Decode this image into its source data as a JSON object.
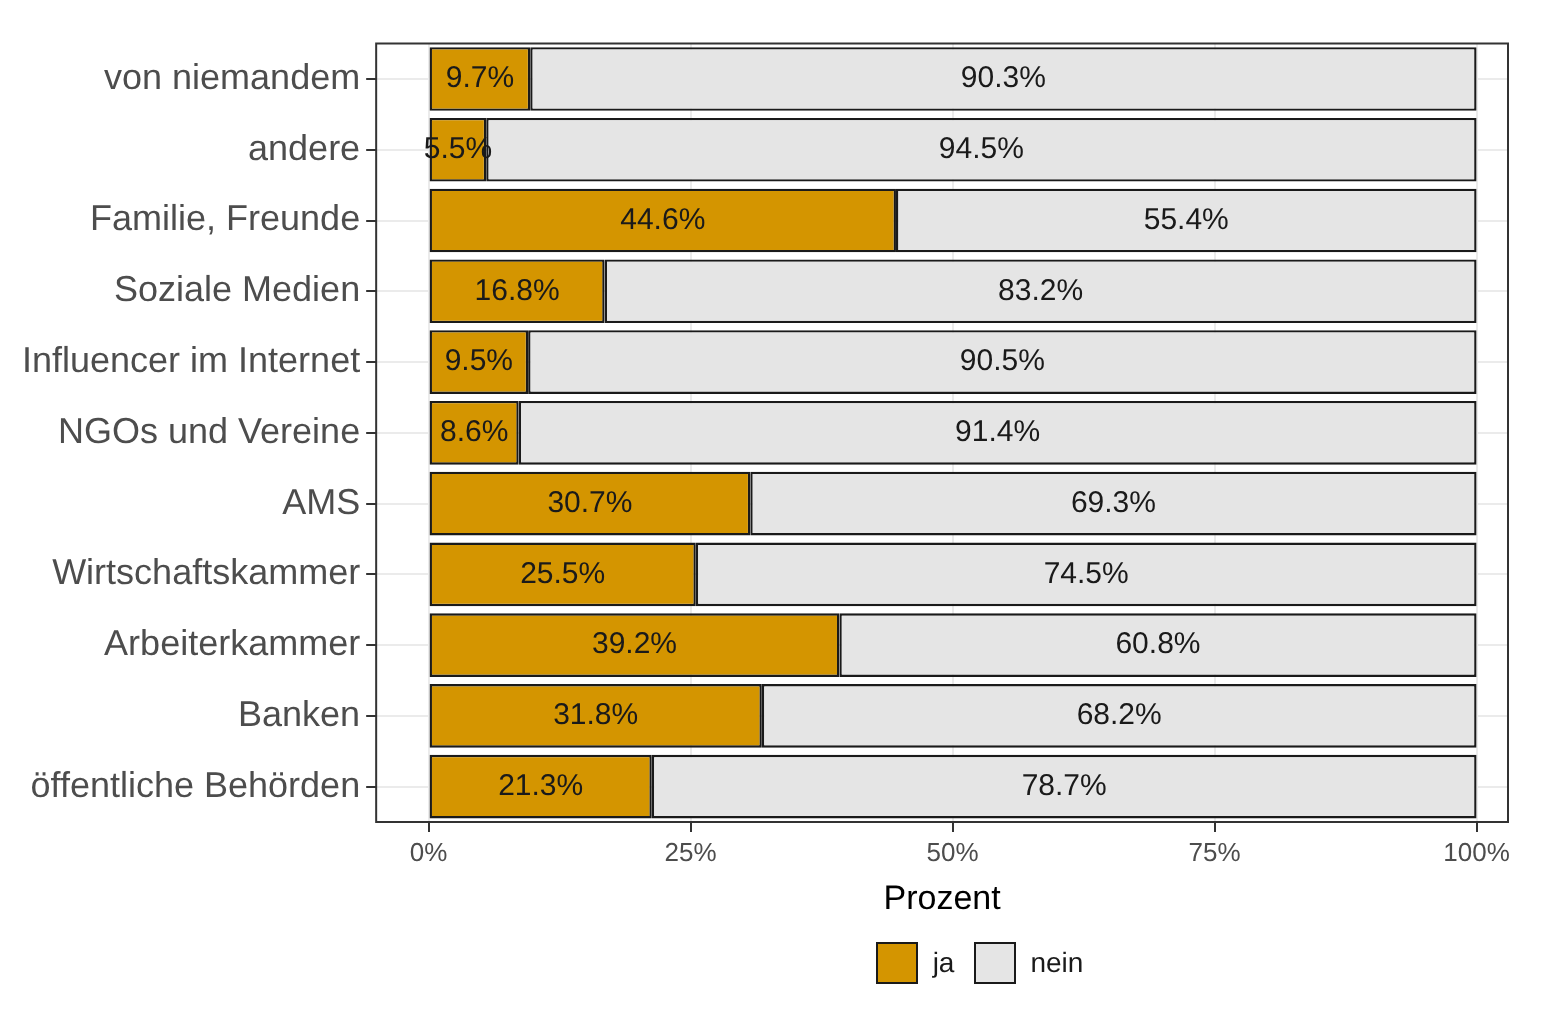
{
  "chart_data": {
    "type": "bar",
    "orientation": "horizontal",
    "stacked": true,
    "xlabel": "Prozent",
    "categories": [
      "von niemandem",
      "andere",
      "Familie, Freunde",
      "Soziale Medien",
      "Influencer im Internet",
      "NGOs und Vereine",
      "AMS",
      "Wirtschaftskammer",
      "Arbeiterkammer",
      "Banken",
      "öffentliche Behörden"
    ],
    "series": [
      {
        "name": "ja",
        "color": "#d49500",
        "values": [
          9.7,
          5.5,
          44.6,
          16.8,
          9.5,
          8.6,
          30.7,
          25.5,
          39.2,
          31.8,
          21.3
        ],
        "value_labels": [
          "9.7%",
          "5.5%",
          "44.6%",
          "16.8%",
          "9.5%",
          "8.6%",
          "30.7%",
          "25.5%",
          "39.2%",
          "31.8%",
          "21.3%"
        ]
      },
      {
        "name": "nein",
        "color": "#e5e5e5",
        "values": [
          90.3,
          94.5,
          55.4,
          83.2,
          90.5,
          91.4,
          69.3,
          74.5,
          60.8,
          68.2,
          78.7
        ],
        "value_labels": [
          "90.3%",
          "94.5%",
          "55.4%",
          "83.2%",
          "90.5%",
          "91.4%",
          "69.3%",
          "74.5%",
          "60.8%",
          "68.2%",
          "78.7%"
        ]
      }
    ],
    "xlim": [
      -5,
      103
    ],
    "xticks": [
      {
        "value": 0,
        "label": "0%"
      },
      {
        "value": 25,
        "label": "25%"
      },
      {
        "value": 50,
        "label": "50%"
      },
      {
        "value": 75,
        "label": "75%"
      },
      {
        "value": 100,
        "label": "100%"
      }
    ],
    "grid": true,
    "legend": "bottom"
  }
}
